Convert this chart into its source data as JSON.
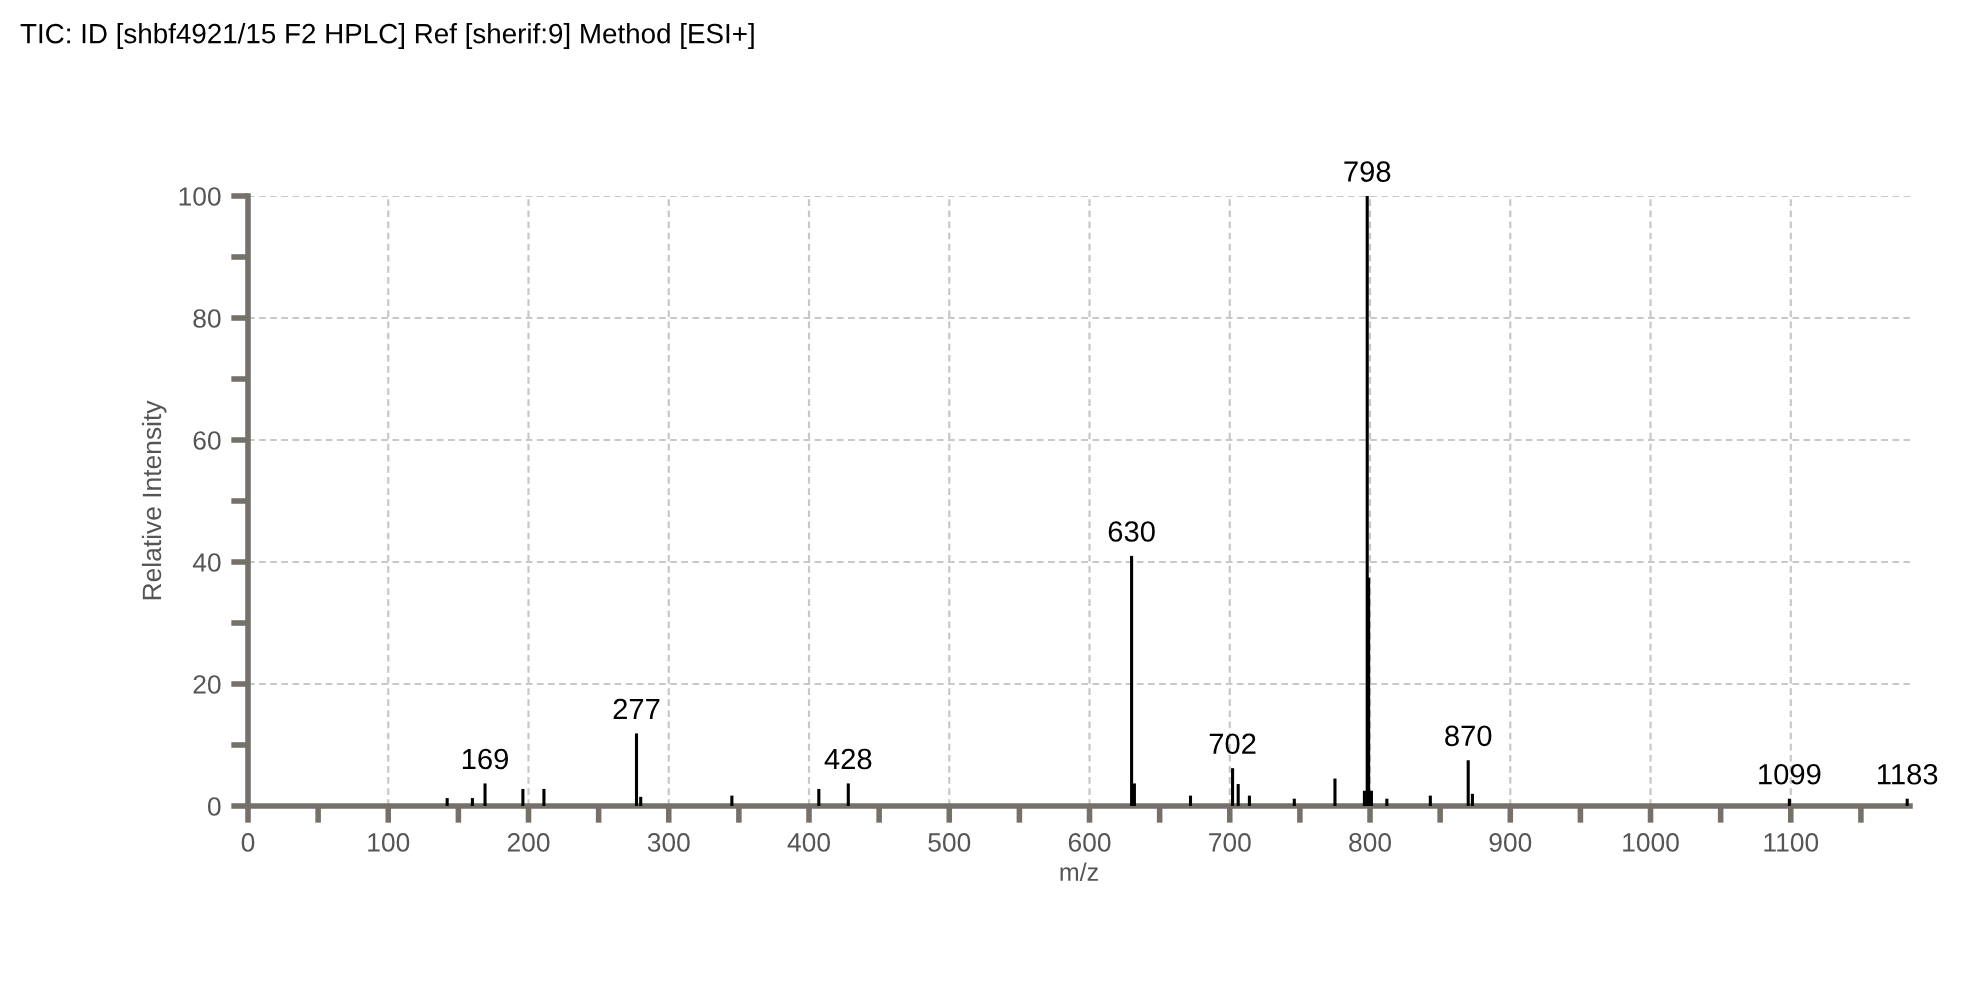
{
  "chart_data": {
    "type": "bar",
    "title": "TIC: ID [shbf4921/15 F2 HPLC] Ref [sherif:9] Method [ESI+]",
    "xlabel": "m/z",
    "ylabel": "Relative Intensity",
    "x": [
      142,
      160,
      169,
      196,
      211,
      277,
      280,
      345,
      407,
      428,
      630,
      632,
      672,
      702,
      706,
      714,
      746,
      775,
      796,
      798,
      799,
      801,
      812,
      843,
      870,
      873,
      1099,
      1183
    ],
    "values": [
      1.3,
      1.3,
      3.7,
      2.8,
      2.8,
      11.9,
      1.5,
      1.7,
      2.8,
      3.7,
      41,
      3.7,
      1.7,
      6.2,
      3.6,
      1.7,
      1.2,
      4.5,
      2.5,
      100,
      37.4,
      2.5,
      1.2,
      1.7,
      7.5,
      2,
      1.2,
      1.2
    ],
    "color": "#000000",
    "xlim": [
      0,
      1185
    ],
    "ylim": [
      0,
      100
    ],
    "xticks": [
      0,
      {
        "value": 50,
        "label": null
      },
      100,
      {
        "value": 150,
        "label": null
      },
      200,
      {
        "value": 250,
        "label": null
      },
      300,
      {
        "value": 350,
        "label": null
      },
      400,
      {
        "value": 450,
        "label": null
      },
      500,
      {
        "value": 550,
        "label": null
      },
      600,
      {
        "value": 650,
        "label": null
      },
      700,
      {
        "value": 750,
        "label": null
      },
      800,
      {
        "value": 850,
        "label": null
      },
      900,
      {
        "value": 950,
        "label": null
      },
      1000,
      {
        "value": 1050,
        "label": null
      },
      1100,
      {
        "value": 1150,
        "label": null
      }
    ],
    "yticks": [
      0,
      {
        "value": 10,
        "label": null
      },
      20,
      {
        "value": 30,
        "label": null
      },
      40,
      {
        "value": 50,
        "label": null
      },
      60,
      {
        "value": 70,
        "label": null
      },
      80,
      {
        "value": 90,
        "label": null
      },
      100
    ],
    "grid": true,
    "annotations": [
      {
        "text": "169",
        "x": 169,
        "y": 3.7
      },
      {
        "text": "277",
        "x": 277,
        "y": 11.9
      },
      {
        "text": "428",
        "x": 428,
        "y": 3.7
      },
      {
        "text": "630",
        "x": 630,
        "y": 41
      },
      {
        "text": "702",
        "x": 702,
        "y": 6.2
      },
      {
        "text": "798",
        "x": 798,
        "y": 100
      },
      {
        "text": "870",
        "x": 870,
        "y": 7.5
      },
      {
        "text": "1099",
        "x": 1099,
        "y": 1.2
      },
      {
        "text": "1183",
        "x": 1183,
        "y": 1.2
      }
    ]
  }
}
